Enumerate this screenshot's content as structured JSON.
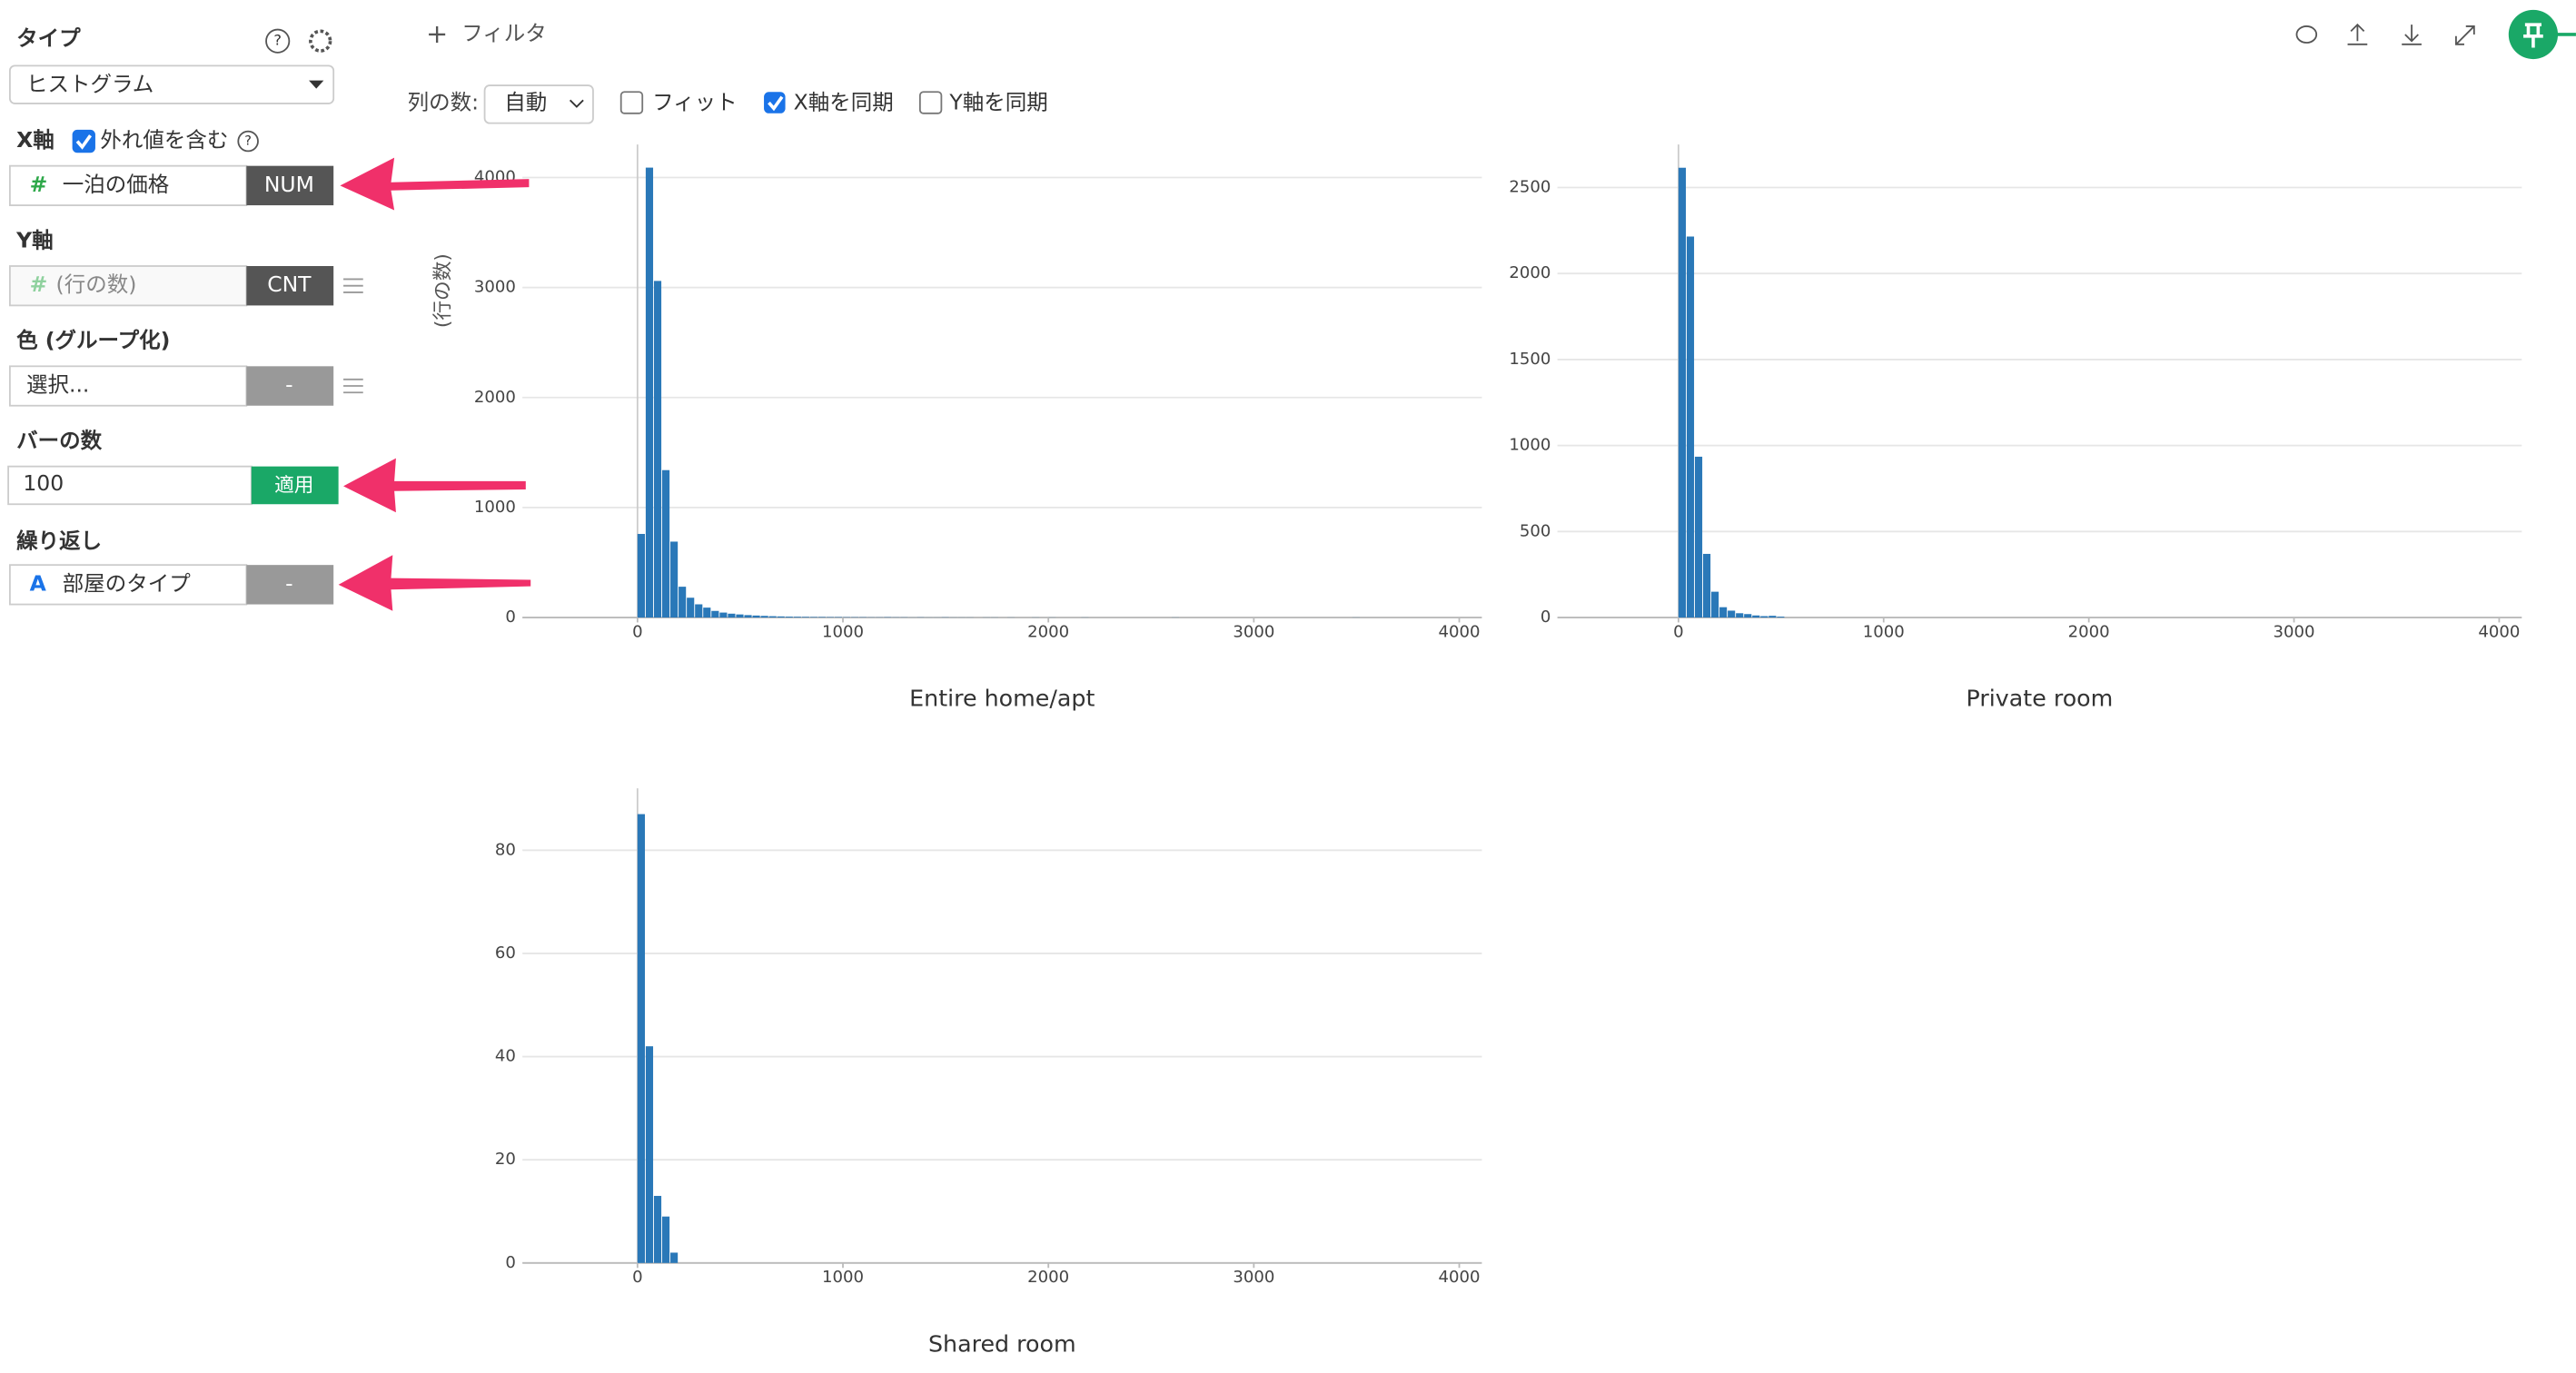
{
  "ui": {
    "type_label": "タイプ",
    "type_value": "ヒストグラム",
    "x_axis": {
      "label": "X軸",
      "outlier": "外れ値を含む",
      "icon": "#",
      "field": "一泊の価格",
      "agg": "NUM"
    },
    "y_axis": {
      "label": "Y軸",
      "icon": "#",
      "field": "(行の数)",
      "agg": "CNT"
    },
    "color": {
      "label": "色 (グループ化)",
      "field": "選択...",
      "agg": "-"
    },
    "bars": {
      "label": "バーの数",
      "value": "100",
      "apply": "適用"
    },
    "repeat": {
      "label": "繰り返し",
      "icon": "A",
      "field": "部屋のタイプ",
      "agg": "-"
    },
    "toolbar": {
      "filter": "フィルタ",
      "columns_label": "列の数:",
      "columns_value": "自動",
      "fit": "フィット",
      "sync_x": "X軸を同期",
      "sync_y": "Y軸を同期"
    }
  },
  "chart_data": [
    {
      "type": "histogram",
      "title": "Entire home/apt",
      "y_label": "(行の数)",
      "color": "#2a78b8",
      "grid": true,
      "bins": [
        0,
        40,
        80,
        120,
        160,
        200,
        240,
        280,
        320,
        360,
        400,
        440,
        480,
        520,
        560,
        600,
        640,
        680,
        720,
        760,
        800,
        840,
        880,
        920,
        960,
        1000,
        1040,
        1080,
        1120,
        1160,
        1200,
        1240,
        1280,
        1320,
        1360,
        1400,
        1440,
        1480,
        1520,
        1560,
        1600,
        1640,
        1680,
        1720,
        1760,
        1800,
        1840,
        1880,
        1920,
        1960,
        2000,
        2040,
        2080,
        2120,
        2160,
        2200,
        2240,
        2280,
        2320,
        2360,
        2400,
        2440,
        2480,
        2520,
        2560,
        2600,
        2640,
        2680,
        2720,
        2760,
        2800,
        2840,
        2880,
        2920,
        2960,
        3000,
        3040,
        3080,
        3120,
        3160,
        3200,
        3240,
        3280,
        3320,
        3360,
        3400,
        3440,
        3480,
        3520,
        3560
      ],
      "values": [
        760,
        4090,
        3060,
        1340,
        690,
        280,
        180,
        120,
        90,
        60,
        45,
        35,
        28,
        22,
        18,
        15,
        12,
        10,
        8,
        7,
        6,
        5,
        5,
        4,
        4,
        3,
        3,
        3,
        2,
        2,
        3,
        2,
        2,
        1,
        2,
        1,
        1,
        2,
        1,
        1,
        1,
        0,
        1,
        1,
        0,
        1,
        0,
        0,
        1,
        0,
        1,
        0,
        0,
        0,
        1,
        0,
        0,
        0,
        0,
        0,
        0,
        0,
        0,
        0,
        0,
        1,
        0,
        0,
        0,
        0,
        0,
        0,
        0,
        0,
        0,
        0,
        0,
        0,
        0,
        0,
        0,
        0,
        0,
        0,
        0,
        0,
        0,
        1,
        0
      ],
      "xlim": [
        -560,
        4110
      ],
      "ylim": [
        0,
        4300
      ],
      "xticks": [
        0,
        1000,
        2000,
        3000,
        4000
      ],
      "yticks": [
        0,
        1000,
        2000,
        3000,
        4000
      ]
    },
    {
      "type": "histogram",
      "title": "Private room",
      "color": "#2a78b8",
      "grid": true,
      "bins": [
        0,
        40,
        80,
        120,
        160,
        200,
        240,
        280,
        320,
        360,
        400,
        440,
        480,
        520
      ],
      "values": [
        2615,
        2215,
        935,
        370,
        150,
        60,
        40,
        25,
        20,
        12,
        8,
        10,
        5
      ],
      "xlim": [
        -590,
        4110
      ],
      "ylim": [
        0,
        2750
      ],
      "xticks": [
        0,
        1000,
        2000,
        3000,
        4000
      ],
      "yticks": [
        0,
        500,
        1000,
        1500,
        2000,
        2500
      ]
    },
    {
      "type": "histogram",
      "title": "Shared room",
      "color": "#2a78b8",
      "grid": true,
      "bins": [
        0,
        40,
        80,
        120,
        160,
        200
      ],
      "values": [
        87,
        42,
        13,
        9,
        2
      ],
      "xlim": [
        -560,
        4110
      ],
      "ylim": [
        0,
        92
      ],
      "xticks": [
        0,
        1000,
        2000,
        3000,
        4000
      ],
      "yticks": [
        0,
        20,
        40,
        60,
        80
      ]
    }
  ]
}
